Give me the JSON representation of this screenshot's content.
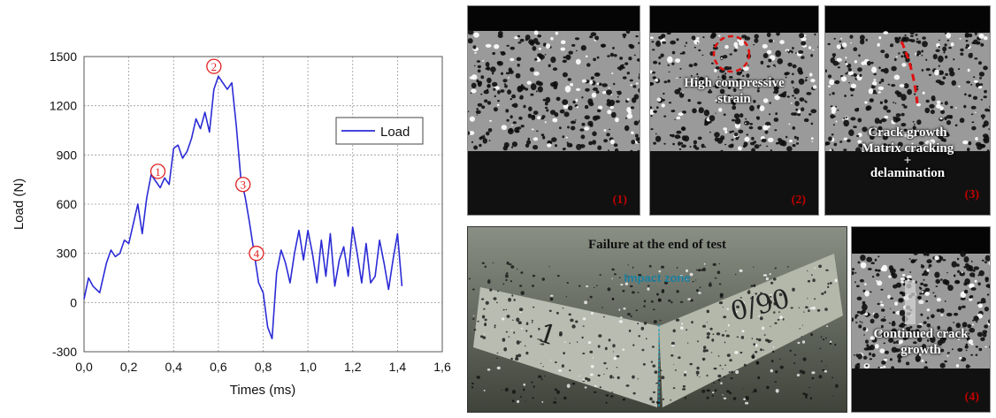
{
  "chart_data": {
    "type": "line",
    "xlabel": "Times (ms)",
    "ylabel": "Load (N)",
    "xlim": [
      0,
      1.6
    ],
    "ylim": [
      -300,
      1500
    ],
    "x_ticks": [
      "0,0",
      "0,2",
      "0,4",
      "0,6",
      "0,8",
      "1,0",
      "1,2",
      "1,4",
      "1,6"
    ],
    "y_ticks": [
      "-300",
      "0",
      "300",
      "600",
      "900",
      "1200",
      "1500"
    ],
    "grid": true,
    "legend_position": "right",
    "series": [
      {
        "name": "Load",
        "color": "#2b2bd6",
        "x": [
          0.0,
          0.02,
          0.04,
          0.07,
          0.1,
          0.12,
          0.14,
          0.16,
          0.18,
          0.2,
          0.22,
          0.24,
          0.26,
          0.28,
          0.3,
          0.32,
          0.34,
          0.36,
          0.38,
          0.4,
          0.42,
          0.44,
          0.46,
          0.48,
          0.5,
          0.52,
          0.54,
          0.56,
          0.58,
          0.6,
          0.62,
          0.64,
          0.66,
          0.68,
          0.7,
          0.72,
          0.74,
          0.76,
          0.78,
          0.8,
          0.82,
          0.84,
          0.86,
          0.88,
          0.9,
          0.92,
          0.94,
          0.96,
          0.98,
          1.0,
          1.02,
          1.04,
          1.06,
          1.08,
          1.1,
          1.12,
          1.14,
          1.16,
          1.18,
          1.2,
          1.22,
          1.24,
          1.26,
          1.28,
          1.3,
          1.32,
          1.34,
          1.36,
          1.38,
          1.4,
          1.42
        ],
        "y": [
          20,
          150,
          100,
          60,
          240,
          320,
          280,
          300,
          380,
          360,
          480,
          600,
          420,
          640,
          780,
          740,
          700,
          760,
          720,
          940,
          960,
          880,
          920,
          1000,
          1120,
          1060,
          1160,
          1040,
          1300,
          1380,
          1340,
          1300,
          1340,
          1080,
          760,
          640,
          480,
          300,
          120,
          60,
          -150,
          -220,
          180,
          320,
          240,
          120,
          300,
          440,
          260,
          440,
          300,
          120,
          380,
          160,
          420,
          100,
          260,
          340,
          160,
          460,
          300,
          120,
          360,
          120,
          160,
          380,
          240,
          80,
          260,
          420,
          100
        ],
        "markers": [
          {
            "label": "1",
            "x": 0.33,
            "y": 800
          },
          {
            "label": "2",
            "x": 0.58,
            "y": 1440
          },
          {
            "label": "3",
            "x": 0.71,
            "y": 720
          },
          {
            "label": "4",
            "x": 0.77,
            "y": 300
          }
        ]
      }
    ]
  },
  "panels": {
    "p1": {
      "label": "(1)",
      "caption": ""
    },
    "p2": {
      "label": "(2)",
      "caption1": "High compressive",
      "caption2": "strain"
    },
    "p3": {
      "label": "(3)",
      "caption1": "Crack growth",
      "caption2": "Matrix cracking",
      "caption3": "+",
      "caption4": "delamination"
    },
    "p4": {
      "label": "(4)",
      "caption1": "Continued crack",
      "caption2": "growth"
    }
  },
  "specimen": {
    "title": "Failure at the end of test",
    "zone_label": "Impact zone",
    "mark_left": "1",
    "mark_right": "0/90"
  },
  "colors": {
    "series": "#2b2bd6",
    "marker": "#e02020",
    "panel_label": "#c00000",
    "zone": "#1a7fa0"
  }
}
